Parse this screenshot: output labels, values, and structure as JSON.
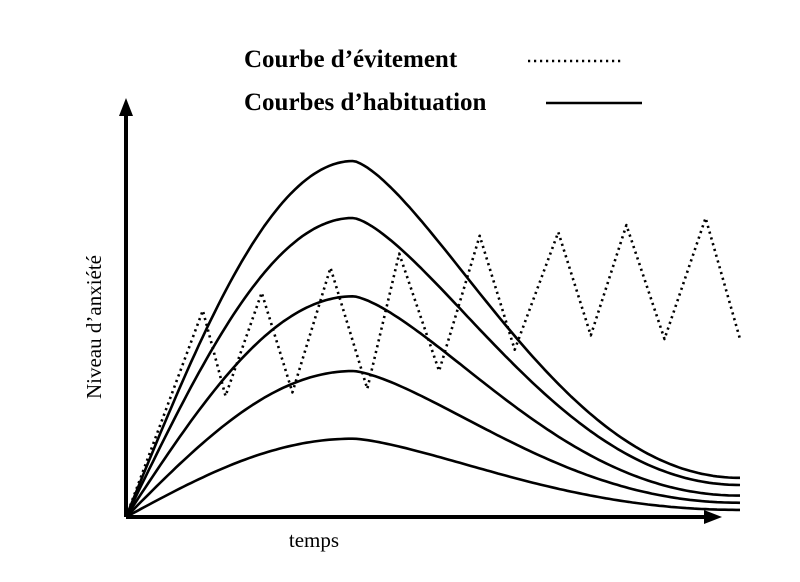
{
  "legend": {
    "avoidance_label": "Courbe d’évitement",
    "habituation_label": "Courbes d’habituation"
  },
  "axes": {
    "y_label": "Niveau d’anxiété",
    "x_label": "temps"
  },
  "chart_data": {
    "type": "line",
    "title": "",
    "xlabel": "temps",
    "ylabel": "Niveau d’anxiété",
    "xlim": [
      0,
      100
    ],
    "ylim": [
      0,
      100
    ],
    "grid": false,
    "legend_position": "top-right",
    "series": [
      {
        "name": "Courbes d’habituation",
        "style": "solid",
        "curves": [
          {
            "peak_x": 37,
            "peak_y": 100,
            "end_y": 11
          },
          {
            "peak_x": 37,
            "peak_y": 84,
            "end_y": 9
          },
          {
            "peak_x": 37,
            "peak_y": 62,
            "end_y": 6
          },
          {
            "peak_x": 37,
            "peak_y": 41,
            "end_y": 4
          },
          {
            "peak_x": 37,
            "peak_y": 22,
            "end_y": 2
          }
        ]
      },
      {
        "name": "Courbe d’évitement",
        "style": "dotted",
        "x": [
          0,
          12.5,
          16.2,
          22.1,
          27.1,
          33.3,
          39.3,
          44.5,
          51,
          57.6,
          63.3,
          70.4,
          75.7,
          81.5,
          87.7,
          94.4,
          100
        ],
        "y": [
          0,
          58,
          34,
          63,
          35,
          70,
          36,
          74,
          41,
          79,
          47,
          80,
          51,
          82,
          50,
          84,
          50
        ]
      }
    ]
  }
}
